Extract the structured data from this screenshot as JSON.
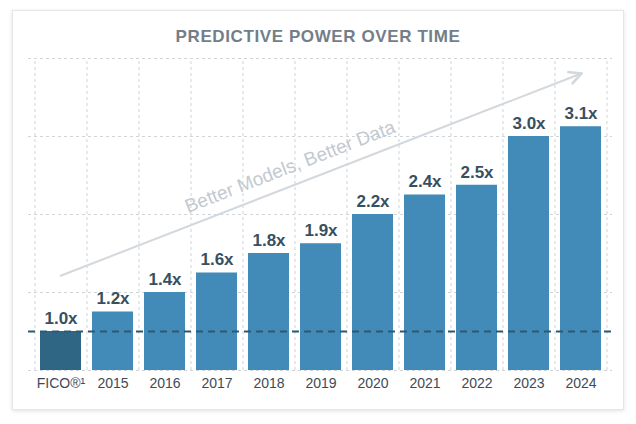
{
  "chart_data": {
    "type": "bar",
    "title": "PREDICTIVE POWER OVER TIME",
    "categories": [
      "FICO®¹",
      "2015",
      "2016",
      "2017",
      "2018",
      "2019",
      "2020",
      "2021",
      "2022",
      "2023",
      "2024"
    ],
    "values": [
      1.0,
      1.2,
      1.4,
      1.6,
      1.8,
      1.9,
      2.2,
      2.4,
      2.5,
      3.0,
      3.1
    ],
    "value_labels": [
      "1.0x",
      "1.2x",
      "1.4x",
      "1.6x",
      "1.8x",
      "1.9x",
      "2.2x",
      "2.4x",
      "2.5x",
      "3.0x",
      "3.1x"
    ],
    "colors": [
      "#2f6684",
      "#428ab8",
      "#428ab8",
      "#428ab8",
      "#428ab8",
      "#428ab8",
      "#428ab8",
      "#428ab8",
      "#428ab8",
      "#428ab8",
      "#428ab8"
    ],
    "ylim": [
      0.6,
      3.8
    ],
    "yticks": [
      0.6,
      1.4,
      2.2,
      3.0,
      3.8
    ],
    "grid": true,
    "data_labels": true,
    "tick_labels": "x",
    "reference_value": 1.0,
    "annotations": [
      "Better Models, Better Data"
    ]
  }
}
